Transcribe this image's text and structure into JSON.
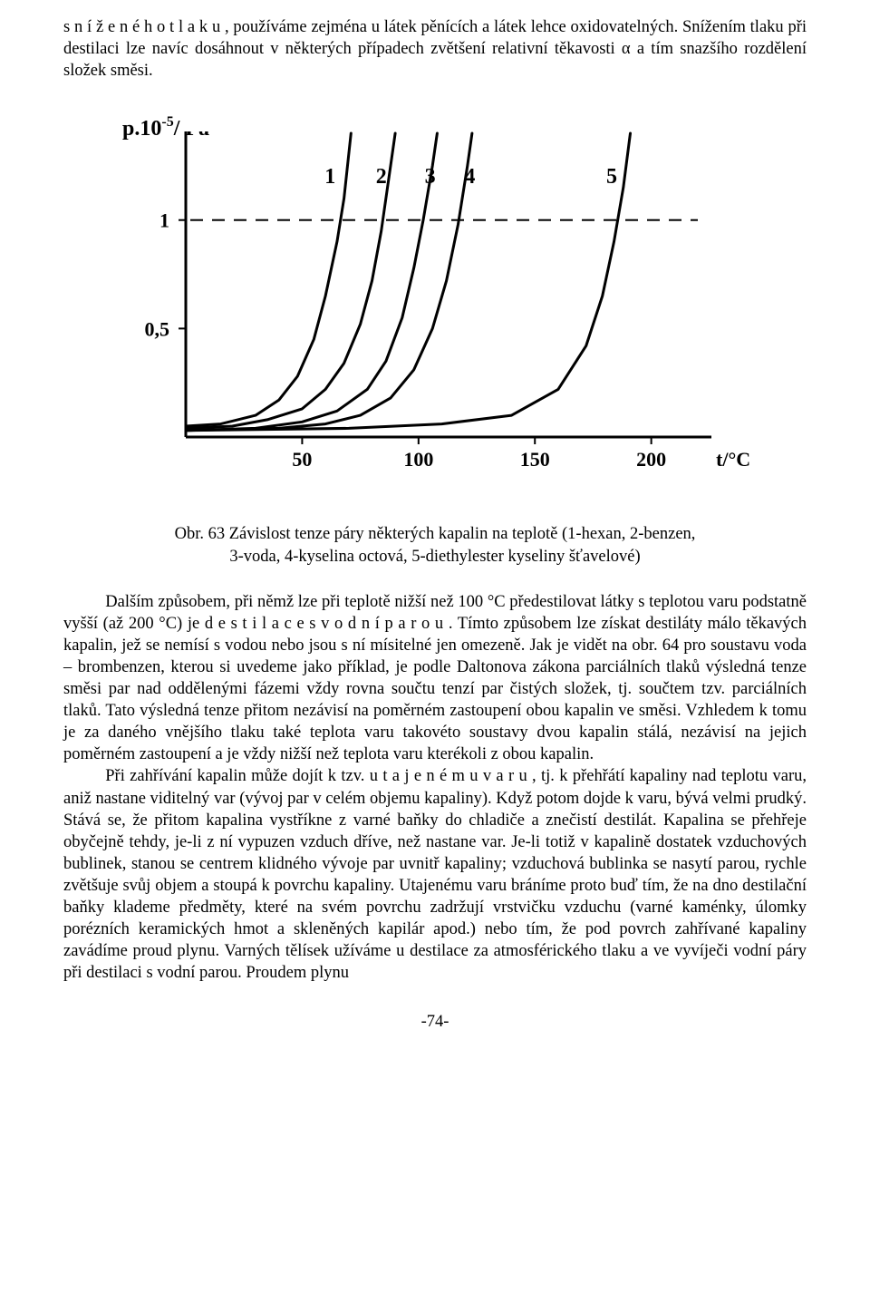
{
  "para1": {
    "prefix": "s n í ž e n é h o   t l a k u ,",
    "rest": " používáme zejména u látek pěnících a látek lehce oxidovatelných. Snížením tlaku při destilaci lze navíc dosáhnout v některých případech zvětšení relativní těkavosti  α a tím snazšího rozdělení složek směsi."
  },
  "figure": {
    "type": "line",
    "ylabel_prefix": "p.10",
    "ylabel_exp": "-5",
    "ylabel_unit": "/ Pa",
    "xlabel": "t/°C",
    "xlim": [
      0,
      220
    ],
    "ylim": [
      0,
      1.4
    ],
    "xticks": [
      50,
      100,
      150,
      200
    ],
    "yticks": [
      0.5,
      1
    ],
    "ytick_labels": [
      "0,5",
      "1"
    ],
    "dashed_y": 1.0,
    "line_color": "#000000",
    "line_width": 3,
    "dash_width": 2,
    "tick_fontsize": 22,
    "curve_label_fontsize": 24,
    "curves": [
      {
        "label": "1",
        "label_x": 62,
        "label_y": 1.17,
        "pts": [
          [
            0,
            0.05
          ],
          [
            15,
            0.06
          ],
          [
            30,
            0.1
          ],
          [
            40,
            0.17
          ],
          [
            48,
            0.28
          ],
          [
            55,
            0.45
          ],
          [
            60,
            0.65
          ],
          [
            65,
            0.9
          ],
          [
            68,
            1.1
          ],
          [
            71,
            1.4
          ]
        ]
      },
      {
        "label": "2",
        "label_x": 84,
        "label_y": 1.17,
        "pts": [
          [
            0,
            0.04
          ],
          [
            20,
            0.05
          ],
          [
            35,
            0.08
          ],
          [
            50,
            0.13
          ],
          [
            60,
            0.22
          ],
          [
            68,
            0.34
          ],
          [
            75,
            0.52
          ],
          [
            80,
            0.72
          ],
          [
            84,
            0.95
          ],
          [
            88,
            1.25
          ],
          [
            90,
            1.4
          ]
        ]
      },
      {
        "label": "3",
        "label_x": 105,
        "label_y": 1.17,
        "pts": [
          [
            0,
            0.03
          ],
          [
            30,
            0.04
          ],
          [
            50,
            0.07
          ],
          [
            65,
            0.12
          ],
          [
            78,
            0.22
          ],
          [
            86,
            0.35
          ],
          [
            93,
            0.55
          ],
          [
            98,
            0.78
          ],
          [
            102,
            1.0
          ],
          [
            106,
            1.25
          ],
          [
            108,
            1.4
          ]
        ]
      },
      {
        "label": "4",
        "label_x": 122,
        "label_y": 1.17,
        "pts": [
          [
            0,
            0.03
          ],
          [
            40,
            0.04
          ],
          [
            60,
            0.06
          ],
          [
            75,
            0.1
          ],
          [
            88,
            0.18
          ],
          [
            98,
            0.31
          ],
          [
            106,
            0.5
          ],
          [
            112,
            0.72
          ],
          [
            117,
            0.98
          ],
          [
            121,
            1.25
          ],
          [
            123,
            1.4
          ]
        ]
      },
      {
        "label": "5",
        "label_x": 183,
        "label_y": 1.17,
        "pts": [
          [
            0,
            0.03
          ],
          [
            70,
            0.04
          ],
          [
            110,
            0.06
          ],
          [
            140,
            0.1
          ],
          [
            160,
            0.22
          ],
          [
            172,
            0.42
          ],
          [
            179,
            0.65
          ],
          [
            184,
            0.9
          ],
          [
            188,
            1.15
          ],
          [
            191,
            1.4
          ]
        ]
      }
    ],
    "plot_bg": "#ffffff",
    "axis_color": "#000000"
  },
  "caption": {
    "line1": "Obr. 63   Závislost tenze páry některých kapalin na teplotě (1-hexan, 2-benzen,",
    "line2": "3-voda, 4-kyselina octová, 5-diethylester kyseliny šťavelové)"
  },
  "para2": {
    "indent_prefix": "Dalším způsobem, při němž lze při teplotě nižší než 100 °C předestilovat látky s teplotou varu podstatně vyšší (až 200 °C) je ",
    "spaced1": "d e s t i l a c e   s   v o d n í   p a r o u .",
    "rest": " Tímto způsobem lze získat destiláty málo těkavých kapalin, jež se nemísí s vodou nebo jsou s ní mísitelné jen omezeně. Jak je vidět na obr. 64 pro soustavu voda – brombenzen, kterou si uvedeme jako příklad, je podle Daltonova zákona parciálních tlaků výsledná tenze směsi par nad oddělenými fázemi vždy rovna součtu tenzí par čistých složek, tj. součtem tzv. parciálních tlaků. Tato výsledná tenze přitom nezávisí na poměrném zastoupení obou kapalin ve směsi. Vzhledem k tomu je za daného vnějšího tlaku také teplota varu takovéto soustavy dvou kapalin stálá, nezávisí na jejich poměrném zastoupení a je vždy nižší než teplota varu kterékoli z obou kapalin."
  },
  "para3": {
    "indent_prefix": "Při zahřívání kapalin může dojít k tzv.  ",
    "spaced1": "u t a j e n é m u   v a r u ,",
    "rest": "  tj. k přehřátí kapaliny nad teplotu varu, aniž nastane viditelný var (vývoj par v celém objemu kapaliny). Když potom dojde k varu, bývá velmi prudký. Stává se, že přitom kapalina vystříkne z varné baňky do chladiče a znečistí destilát. Kapalina se přehřeje obyčejně tehdy, je-li z ní vypuzen vzduch dříve, než nastane var. Je-li totiž v kapalině dostatek vzduchových bublinek, stanou se centrem klidného vývoje par uvnitř kapaliny; vzduchová bublinka se nasytí parou, rychle zvětšuje svůj objem a stoupá k povrchu kapaliny. Utajenému varu bráníme proto buď tím, že na dno destilační baňky klademe předměty, které na svém povrchu zadržují vrstvičku vzduchu (varné kaménky, úlomky porézních keramických hmot a skleněných kapilár apod.) nebo tím, že pod povrch zahřívané kapaliny zavádíme proud plynu. Varných tělísek užíváme u destilace za atmosférického tlaku a ve vyvíječi vodní páry při destilaci s vodní parou. Proudem plynu"
  },
  "page_num": "-74-"
}
